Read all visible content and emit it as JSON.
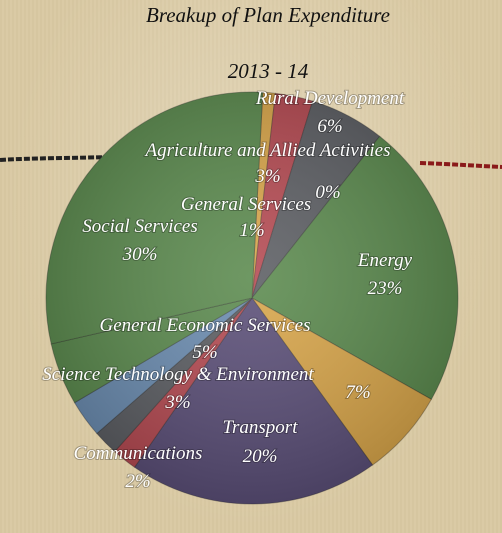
{
  "chart_data": {
    "type": "pie",
    "title": "Breakup of Plan Expenditure",
    "subtitle": "2013 - 14",
    "slices": [
      {
        "label": "General Services",
        "value": 1,
        "display": "1%",
        "color": "#d9a64a"
      },
      {
        "label": "Agriculture and Allied Activities",
        "value": 3,
        "display": "3%",
        "color": "#b54a52"
      },
      {
        "label": "Rural Development",
        "value": 6,
        "display": "6%",
        "color": "#5c5e63"
      },
      {
        "label": "",
        "value": 0,
        "display": "0%",
        "color": "#7a7a7a"
      },
      {
        "label": "Energy",
        "value": 23,
        "display": "23%",
        "color": "#5b8a4e"
      },
      {
        "label": "",
        "value": 7,
        "display": "7%",
        "color": "#d9a64a"
      },
      {
        "label": "Transport",
        "value": 20,
        "display": "20%",
        "color": "#5b4f78"
      },
      {
        "label": "",
        "value": 2,
        "display": "",
        "color": "#b54a52"
      },
      {
        "label": "Communications",
        "value": 2,
        "display": "2%",
        "color": "#5c5e63"
      },
      {
        "label": "Science Technology & Environment",
        "value": 3,
        "display": "3%",
        "color": "#6b8cb0"
      },
      {
        "label": "General Economic Services",
        "value": 5,
        "display": "5%",
        "color": "#5b8a4e"
      },
      {
        "label": "Social Services",
        "value": 30,
        "display": "30%",
        "color": "#5b8a4e"
      }
    ]
  }
}
